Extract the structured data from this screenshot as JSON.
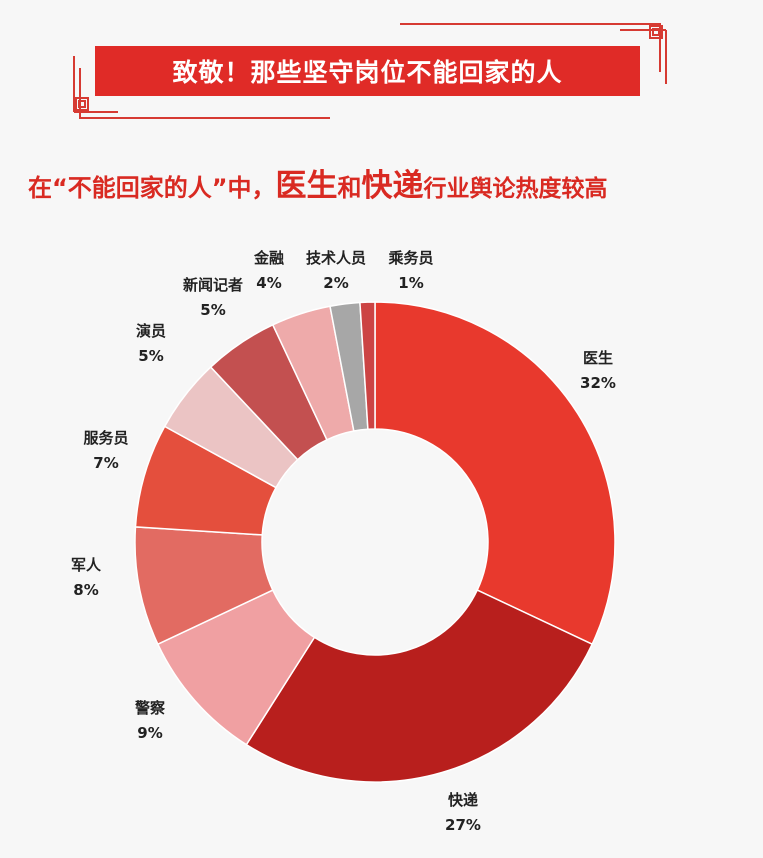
{
  "banner": {
    "title": "致敬！那些坚守岗位不能回家的人"
  },
  "subtitle": {
    "part1": "在“不能回家的人”中，",
    "highlight1": "医生",
    "part2": "和",
    "highlight2": "快递",
    "part3": "行业舆论热度较高"
  },
  "chart_data": {
    "type": "pie",
    "title": "",
    "categories": [
      "医生",
      "快递",
      "警察",
      "军人",
      "服务员",
      "演员",
      "新闻记者",
      "金融",
      "技术人员",
      "乘务员"
    ],
    "values": [
      32,
      27,
      9,
      8,
      7,
      5,
      5,
      4,
      2,
      1
    ],
    "value_labels": [
      "32%",
      "27%",
      "9%",
      "8%",
      "7%",
      "5%",
      "5%",
      "4%",
      "2%",
      "1%"
    ],
    "colors": [
      "#e8392d",
      "#b81f1d",
      "#f0a0a2",
      "#e26b62",
      "#e44f3d",
      "#ebc4c4",
      "#c35050",
      "#eeaaaa",
      "#a7a7a7",
      "#cc4444"
    ],
    "donut": true,
    "legend": "none"
  }
}
